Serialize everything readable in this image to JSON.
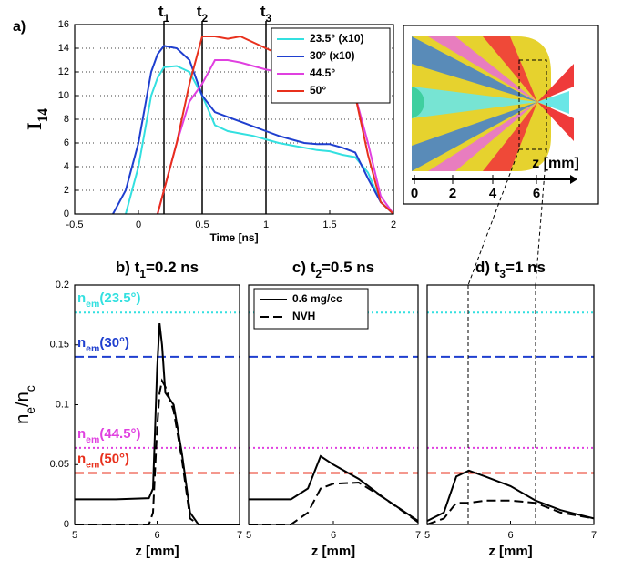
{
  "chart_data": [
    {
      "type": "line",
      "panel": "a)",
      "x_label": "Time [ns]",
      "y_label": {
        "main": "I",
        "sub": "14"
      },
      "xlim": [
        -0.5,
        2
      ],
      "ylim": [
        0,
        16
      ],
      "xticks": [
        -0.5,
        0,
        0.5,
        1,
        1.5,
        2
      ],
      "yticks": [
        0,
        2,
        4,
        6,
        8,
        10,
        12,
        14,
        16
      ],
      "grid": true,
      "markers": [
        {
          "value": 0.2,
          "label": "t",
          "sub": "1"
        },
        {
          "value": 0.5,
          "label": "t",
          "sub": "2"
        },
        {
          "value": 1,
          "label": "t",
          "sub": "3"
        }
      ],
      "legend": "upper right",
      "x": [
        -0.2,
        -0.1,
        0,
        0.1,
        0.15,
        0.2,
        0.3,
        0.4,
        0.5,
        0.6,
        0.7,
        0.8,
        0.9,
        1.0,
        1.1,
        1.2,
        1.3,
        1.4,
        1.5,
        1.6,
        1.7,
        1.8,
        1.9,
        2.0
      ],
      "series": [
        {
          "name": "23.5° (x10)",
          "color": "#33e0e0",
          "dash": "solid",
          "values": [
            null,
            0,
            4,
            10,
            11.5,
            12.4,
            12.5,
            12,
            10,
            7.5,
            7,
            6.8,
            6.6,
            6.3,
            6,
            5.8,
            5.6,
            5.4,
            5.3,
            5,
            4.8,
            3.5,
            1,
            0
          ]
        },
        {
          "name": "30° (x10)",
          "color": "#1f3fcf",
          "dash": "solid",
          "values": [
            0,
            2,
            6,
            12,
            13.5,
            14.2,
            14,
            13,
            10,
            8.6,
            8.2,
            7.8,
            7.4,
            7,
            6.6,
            6.3,
            6,
            5.9,
            5.9,
            5.6,
            5.2,
            3,
            1,
            0
          ]
        },
        {
          "name": "44.5°",
          "color": "#e040e0",
          "dash": "solid",
          "values": [
            null,
            null,
            null,
            null,
            0,
            2,
            6,
            9.5,
            11,
            13,
            13,
            12.8,
            12.5,
            12.2,
            12,
            11.8,
            11.6,
            11.4,
            11.2,
            10.8,
            10,
            6,
            1.5,
            0
          ]
        },
        {
          "name": "50°",
          "color": "#e8301c",
          "dash": "solid",
          "values": [
            null,
            null,
            null,
            null,
            0,
            2,
            6,
            11,
            15,
            15,
            14.8,
            15,
            14.5,
            14,
            13.5,
            13,
            12.5,
            12,
            11.5,
            11,
            10,
            5,
            1,
            0
          ]
        }
      ]
    },
    {
      "type": "line",
      "title": {
        "prefix": "b) t",
        "sub": "1",
        "suffix": "=0.2 ns"
      },
      "x_label": "z [mm]",
      "y_label": {
        "a": "n",
        "a_sub": "e",
        "b": "/n",
        "b_sub": "c"
      },
      "xlim": [
        5,
        7
      ],
      "ylim": [
        0,
        0.2
      ],
      "xticks": [
        5,
        6,
        7
      ],
      "yticks": [
        0,
        0.05,
        0.1,
        0.15,
        0.2
      ],
      "thresholds": true,
      "threshold_labels": true,
      "x": [
        5,
        5.5,
        5.9,
        5.95,
        6.0,
        6.03,
        6.06,
        6.1,
        6.15,
        6.2,
        6.3,
        6.4,
        6.5,
        7
      ],
      "series": [
        {
          "name": "0.6 mg/cc",
          "color": "#000000",
          "dash": "solid",
          "values": [
            0.021,
            0.021,
            0.022,
            0.03,
            0.13,
            0.168,
            0.15,
            0.11,
            0.105,
            0.1,
            0.06,
            0.01,
            0,
            0
          ]
        },
        {
          "name": "NVH",
          "color": "#000000",
          "dash": "dashed",
          "values": [
            0,
            0,
            0,
            0.01,
            0.08,
            0.11,
            0.12,
            0.115,
            0.105,
            0.095,
            0.055,
            0.005,
            0,
            0
          ]
        }
      ]
    },
    {
      "type": "line",
      "title": {
        "prefix": "c) t",
        "sub": "2",
        "suffix": "=0.5 ns"
      },
      "x_label": "z [mm]",
      "xlim": [
        5,
        7
      ],
      "ylim": [
        0,
        0.2
      ],
      "xticks": [
        5,
        6,
        7
      ],
      "thresholds": true,
      "legend": "upper left",
      "x": [
        5,
        5.5,
        5.7,
        5.85,
        6.0,
        6.3,
        6.6,
        7
      ],
      "series": [
        {
          "name": "0.6 mg/cc",
          "color": "#000000",
          "dash": "solid",
          "values": [
            0.021,
            0.021,
            0.03,
            0.057,
            0.05,
            0.038,
            0.022,
            0.003
          ]
        },
        {
          "name": "NVH",
          "color": "#000000",
          "dash": "dashed",
          "values": [
            0,
            0,
            0.01,
            0.03,
            0.034,
            0.035,
            0.022,
            0.002
          ]
        }
      ]
    },
    {
      "type": "line",
      "title": {
        "prefix": "d) t",
        "sub": "3",
        "suffix": "=1 ns"
      },
      "x_label": "z [mm]",
      "xlim": [
        5,
        7
      ],
      "ylim": [
        0,
        0.2
      ],
      "xticks": [
        5,
        6,
        7
      ],
      "thresholds": true,
      "x": [
        5,
        5.2,
        5.35,
        5.5,
        5.7,
        6.0,
        6.3,
        6.6,
        7
      ],
      "series": [
        {
          "name": "0.6 mg/cc",
          "color": "#000000",
          "dash": "solid",
          "values": [
            0.003,
            0.01,
            0.04,
            0.045,
            0.04,
            0.032,
            0.02,
            0.012,
            0.005
          ]
        },
        {
          "name": "NVH",
          "color": "#000000",
          "dash": "dashed",
          "values": [
            0,
            0.005,
            0.018,
            0.018,
            0.02,
            0.02,
            0.018,
            0.01,
            0.005
          ]
        }
      ]
    }
  ],
  "density_thresholds": [
    {
      "main": "n",
      "sub": "em",
      "angle": "(23.5°)",
      "value": 0.177,
      "color": "#33e0e0",
      "dash": "dotted"
    },
    {
      "main": "n",
      "sub": "em",
      "angle": "(30°)",
      "value": 0.14,
      "color": "#1f3fcf",
      "dash": "dashed"
    },
    {
      "main": "n",
      "sub": "em",
      "angle": "(44.5°)",
      "value": 0.064,
      "color": "#e040e0",
      "dash": "dotted"
    },
    {
      "main": "n",
      "sub": "em",
      "angle": "(50°)",
      "value": 0.043,
      "color": "#e8301c",
      "dash": "dashed"
    }
  ],
  "schematic": {
    "axis_label": "z [mm]",
    "ticks": [
      "0",
      "2",
      "4",
      "6"
    ]
  }
}
